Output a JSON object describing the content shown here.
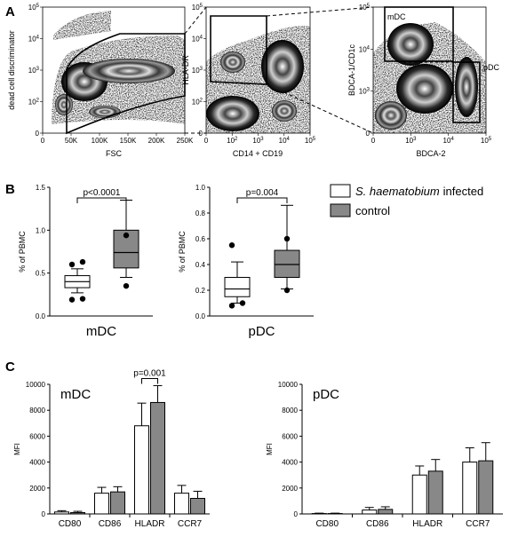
{
  "panel_labels": [
    "A",
    "B",
    "C"
  ],
  "panel_a": {
    "plot1": {
      "ylabel": "dead cell discriminator",
      "xlabel": "FSC",
      "xticks": [
        "0",
        "50K",
        "100K",
        "150K",
        "200K",
        "250K"
      ],
      "yticks": [
        "0",
        "10^2",
        "10^3",
        "10^4",
        "10^5"
      ]
    },
    "plot2": {
      "ylabel": "HLA-DR",
      "xlabel": "CD14 + CD19",
      "xticks": [
        "0",
        "10^2",
        "10^3",
        "10^4",
        "10^5"
      ],
      "yticks": [
        "0",
        "10^2",
        "10^3",
        "10^4",
        "10^5"
      ]
    },
    "plot3": {
      "ylabel": "BDCA-1/CD1c",
      "xlabel": "BDCA-2",
      "xticks": [
        "0",
        "10^3",
        "10^4",
        "10^5"
      ],
      "yticks": [
        "0",
        "10^3",
        "10^4",
        "10^5"
      ],
      "gate_mdc": "mDC",
      "gate_pdc": "pDC"
    }
  },
  "legend": {
    "infected_italic": "S. haematobium",
    "infected_rest": "infected",
    "control": "control"
  },
  "colors": {
    "infected": "#ffffff",
    "control": "#888888"
  },
  "chart_data": [
    {
      "type": "box",
      "title": "",
      "xlabel": "mDC",
      "ylabel": "% of PBMC",
      "ylim": [
        0,
        1.5
      ],
      "yticks": [
        "0.0",
        "0.5",
        "1.0",
        "1.5"
      ],
      "annotation": "p<0.0001",
      "series": [
        {
          "name": "infected",
          "whisker_low": 0.27,
          "q1": 0.33,
          "median": 0.4,
          "q3": 0.47,
          "whisker_high": 0.55,
          "outliers": [
            0.6,
            0.63,
            0.19,
            0.2
          ]
        },
        {
          "name": "control",
          "whisker_low": 0.45,
          "q1": 0.56,
          "median": 0.74,
          "q3": 1.0,
          "whisker_high": 1.35,
          "outliers": [
            0.94,
            0.35
          ]
        }
      ]
    },
    {
      "type": "box",
      "title": "",
      "xlabel": "pDC",
      "ylabel": "% of PBMC",
      "ylim": [
        0,
        1.0
      ],
      "yticks": [
        "0.0",
        "0.2",
        "0.4",
        "0.6",
        "0.8",
        "1.0"
      ],
      "annotation": "p=0.004",
      "series": [
        {
          "name": "infected",
          "whisker_low": 0.1,
          "q1": 0.15,
          "median": 0.21,
          "q3": 0.3,
          "whisker_high": 0.42,
          "outliers": [
            0.55,
            0.1,
            0.08
          ]
        },
        {
          "name": "control",
          "whisker_low": 0.21,
          "q1": 0.3,
          "median": 0.4,
          "q3": 0.51,
          "whisker_high": 0.86,
          "outliers": [
            0.6,
            0.2
          ]
        }
      ]
    },
    {
      "type": "bar",
      "title": "mDC",
      "ylabel": "MFI",
      "ylim": [
        0,
        10000
      ],
      "yticks": [
        "0",
        "2000",
        "4000",
        "6000",
        "8000",
        "10000"
      ],
      "categories": [
        "CD80",
        "CD86",
        "HLADR",
        "CCR7"
      ],
      "annotation": "p=0.001",
      "series": [
        {
          "name": "infected",
          "values": [
            150,
            1600,
            6800,
            1600
          ],
          "errors": [
            100,
            450,
            1750,
            600
          ]
        },
        {
          "name": "control",
          "values": [
            100,
            1700,
            8600,
            1200
          ],
          "errors": [
            100,
            400,
            1300,
            550
          ]
        }
      ]
    },
    {
      "type": "bar",
      "title": "pDC",
      "ylabel": "MFI",
      "ylim": [
        0,
        10000
      ],
      "yticks": [
        "0",
        "2000",
        "4000",
        "6000",
        "8000",
        "10000"
      ],
      "categories": [
        "CD80",
        "CD86",
        "HLADR",
        "CCR7"
      ],
      "series": [
        {
          "name": "infected",
          "values": [
            30,
            300,
            3000,
            4000
          ],
          "errors": [
            30,
            200,
            700,
            1100
          ]
        },
        {
          "name": "control",
          "values": [
            30,
            350,
            3300,
            4100
          ],
          "errors": [
            30,
            200,
            900,
            1400
          ]
        }
      ]
    }
  ]
}
